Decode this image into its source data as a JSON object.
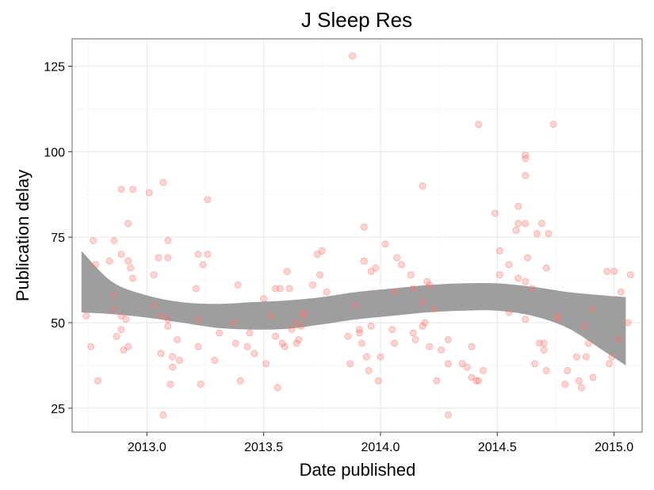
{
  "chart_data": {
    "type": "scatter",
    "title": "J Sleep Res",
    "xlabel": "Date published",
    "ylabel": "Publication delay",
    "xlim": [
      2012.68,
      2015.12
    ],
    "ylim": [
      18,
      133
    ],
    "x_ticks": [
      2013.0,
      2013.5,
      2014.0,
      2014.5,
      2015.0
    ],
    "x_tick_labels": [
      "2013.0",
      "2013.5",
      "2014.0",
      "2014.5",
      "2015.0"
    ],
    "y_ticks": [
      25,
      50,
      75,
      100,
      125
    ],
    "y_tick_labels": [
      "25",
      "50",
      "75",
      "100",
      "125"
    ],
    "grid": true,
    "point_color": "#f8766d",
    "band_color": "#999999",
    "points": [
      [
        2012.74,
        52
      ],
      [
        2012.76,
        43
      ],
      [
        2012.77,
        74
      ],
      [
        2012.78,
        67
      ],
      [
        2012.79,
        33
      ],
      [
        2012.84,
        68
      ],
      [
        2012.86,
        74
      ],
      [
        2012.86,
        58
      ],
      [
        2012.86,
        54
      ],
      [
        2012.87,
        46
      ],
      [
        2012.89,
        89
      ],
      [
        2012.89,
        70
      ],
      [
        2012.89,
        52
      ],
      [
        2012.89,
        48
      ],
      [
        2012.9,
        42
      ],
      [
        2012.91,
        51
      ],
      [
        2012.92,
        43
      ],
      [
        2012.92,
        68
      ],
      [
        2012.92,
        79
      ],
      [
        2012.93,
        66
      ],
      [
        2012.94,
        89
      ],
      [
        2012.94,
        63
      ],
      [
        2013.01,
        88
      ],
      [
        2013.03,
        64
      ],
      [
        2013.03,
        55
      ],
      [
        2013.05,
        69
      ],
      [
        2013.06,
        52
      ],
      [
        2013.06,
        41
      ],
      [
        2013.07,
        91
      ],
      [
        2013.07,
        23
      ],
      [
        2013.09,
        74
      ],
      [
        2013.09,
        69
      ],
      [
        2013.09,
        51
      ],
      [
        2013.09,
        49
      ],
      [
        2013.1,
        32
      ],
      [
        2013.11,
        40
      ],
      [
        2013.11,
        37
      ],
      [
        2013.13,
        45
      ],
      [
        2013.14,
        39
      ],
      [
        2013.21,
        60
      ],
      [
        2013.22,
        70
      ],
      [
        2013.22,
        51
      ],
      [
        2013.22,
        43
      ],
      [
        2013.23,
        32
      ],
      [
        2013.24,
        67
      ],
      [
        2013.26,
        86
      ],
      [
        2013.26,
        70
      ],
      [
        2013.29,
        39
      ],
      [
        2013.31,
        47
      ],
      [
        2013.37,
        50
      ],
      [
        2013.38,
        44
      ],
      [
        2013.39,
        61
      ],
      [
        2013.4,
        33
      ],
      [
        2013.43,
        43
      ],
      [
        2013.44,
        47
      ],
      [
        2013.46,
        41
      ],
      [
        2013.5,
        57
      ],
      [
        2013.51,
        38
      ],
      [
        2013.53,
        52
      ],
      [
        2013.55,
        60
      ],
      [
        2013.55,
        46
      ],
      [
        2013.56,
        31
      ],
      [
        2013.57,
        60
      ],
      [
        2013.58,
        44
      ],
      [
        2013.59,
        43
      ],
      [
        2013.6,
        65
      ],
      [
        2013.61,
        60
      ],
      [
        2013.62,
        48
      ],
      [
        2013.64,
        50
      ],
      [
        2013.64,
        44
      ],
      [
        2013.65,
        45
      ],
      [
        2013.66,
        49
      ],
      [
        2013.67,
        52
      ],
      [
        2013.67,
        53
      ],
      [
        2013.71,
        61
      ],
      [
        2013.73,
        70
      ],
      [
        2013.74,
        64
      ],
      [
        2013.75,
        71
      ],
      [
        2013.77,
        59
      ],
      [
        2013.86,
        46
      ],
      [
        2013.87,
        38
      ],
      [
        2013.88,
        128
      ],
      [
        2013.89,
        55
      ],
      [
        2013.91,
        48
      ],
      [
        2013.91,
        47
      ],
      [
        2013.92,
        44
      ],
      [
        2013.93,
        78
      ],
      [
        2013.93,
        68
      ],
      [
        2013.94,
        40
      ],
      [
        2013.95,
        36
      ],
      [
        2013.96,
        65
      ],
      [
        2013.96,
        49
      ],
      [
        2013.98,
        66
      ],
      [
        2013.99,
        33
      ],
      [
        2014.0,
        40
      ],
      [
        2014.02,
        73
      ],
      [
        2014.05,
        48
      ],
      [
        2014.06,
        59
      ],
      [
        2014.06,
        44
      ],
      [
        2014.07,
        69
      ],
      [
        2014.09,
        67
      ],
      [
        2014.13,
        64
      ],
      [
        2014.14,
        60
      ],
      [
        2014.14,
        47
      ],
      [
        2014.15,
        45
      ],
      [
        2014.18,
        90
      ],
      [
        2014.18,
        56
      ],
      [
        2014.18,
        49
      ],
      [
        2014.19,
        50
      ],
      [
        2014.2,
        62
      ],
      [
        2014.21,
        61
      ],
      [
        2014.21,
        43
      ],
      [
        2014.23,
        54
      ],
      [
        2014.24,
        33
      ],
      [
        2014.26,
        42
      ],
      [
        2014.29,
        45
      ],
      [
        2014.29,
        38
      ],
      [
        2014.29,
        23
      ],
      [
        2014.35,
        38
      ],
      [
        2014.37,
        37
      ],
      [
        2014.39,
        43
      ],
      [
        2014.39,
        34
      ],
      [
        2014.41,
        33
      ],
      [
        2014.42,
        108
      ],
      [
        2014.42,
        33
      ],
      [
        2014.44,
        36
      ],
      [
        2014.49,
        82
      ],
      [
        2014.51,
        71
      ],
      [
        2014.51,
        64
      ],
      [
        2014.55,
        67
      ],
      [
        2014.55,
        53
      ],
      [
        2014.58,
        77
      ],
      [
        2014.59,
        84
      ],
      [
        2014.59,
        79
      ],
      [
        2014.59,
        63
      ],
      [
        2014.62,
        99
      ],
      [
        2014.62,
        98
      ],
      [
        2014.62,
        93
      ],
      [
        2014.62,
        79
      ],
      [
        2014.62,
        62
      ],
      [
        2014.62,
        51
      ],
      [
        2014.63,
        69
      ],
      [
        2014.65,
        60
      ],
      [
        2014.66,
        38
      ],
      [
        2014.67,
        76
      ],
      [
        2014.68,
        44
      ],
      [
        2014.69,
        79
      ],
      [
        2014.7,
        44
      ],
      [
        2014.7,
        42
      ],
      [
        2014.71,
        66
      ],
      [
        2014.71,
        36
      ],
      [
        2014.72,
        76
      ],
      [
        2014.74,
        108
      ],
      [
        2014.76,
        51
      ],
      [
        2014.76,
        52
      ],
      [
        2014.79,
        32
      ],
      [
        2014.8,
        36
      ],
      [
        2014.84,
        40
      ],
      [
        2014.85,
        33
      ],
      [
        2014.86,
        31
      ],
      [
        2014.87,
        49
      ],
      [
        2014.88,
        40
      ],
      [
        2014.89,
        44
      ],
      [
        2014.91,
        34
      ],
      [
        2014.91,
        54
      ],
      [
        2014.97,
        65
      ],
      [
        2014.98,
        38
      ],
      [
        2014.99,
        40
      ],
      [
        2015.0,
        65
      ],
      [
        2015.02,
        45
      ],
      [
        2015.03,
        59
      ],
      [
        2015.06,
        50
      ],
      [
        2015.07,
        64
      ]
    ],
    "band": {
      "x": [
        2012.72,
        2012.85,
        2013.0,
        2013.15,
        2013.3,
        2013.45,
        2013.6,
        2013.75,
        2013.9,
        2014.05,
        2014.2,
        2014.35,
        2014.5,
        2014.65,
        2014.8,
        2014.95,
        2015.05
      ],
      "upper": [
        71,
        62,
        58,
        56,
        55.5,
        56,
        56.5,
        57.5,
        59,
        60,
        61,
        61.5,
        61.5,
        60.5,
        59,
        58,
        57.5
      ],
      "lower": [
        53,
        52.5,
        51.5,
        50,
        48.5,
        48,
        48.2,
        49.5,
        51,
        52,
        53,
        53.5,
        53.5,
        52,
        48.5,
        42,
        37.5
      ]
    }
  }
}
